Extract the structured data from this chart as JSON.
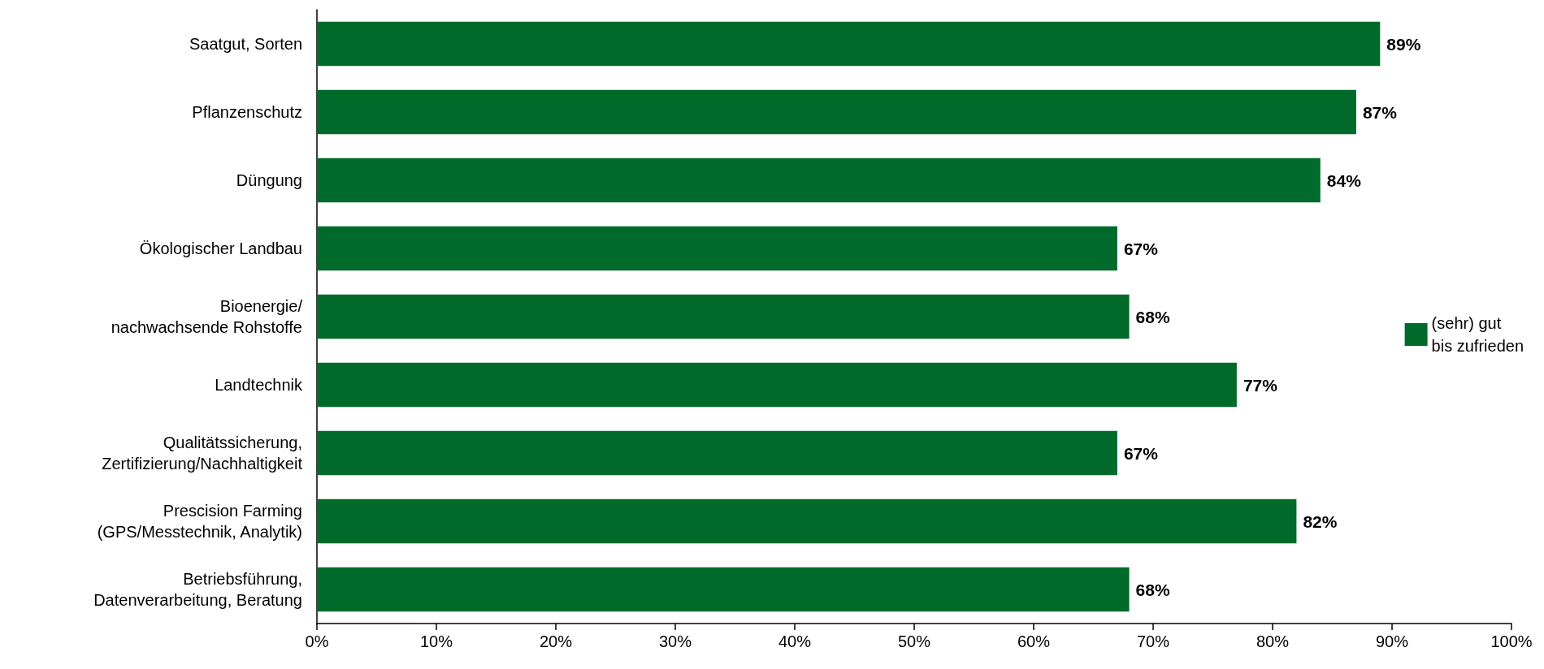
{
  "chart_data": {
    "type": "bar",
    "orientation": "horizontal",
    "categories": [
      "Saatgut, Sorten",
      "Pflanzenschutz",
      "Düngung",
      "Ökologischer Landbau",
      "Bioenergie/\nnachwachsende Rohstoffe",
      "Landtechnik",
      "Qualitätssicherung,\nZertifizierung/Nachhaltigkeit",
      "Prescision Farming\n(GPS/Messtechnik, Analytik)",
      "Betriebsführung,\nDatenverarbeitung, Beratung"
    ],
    "series": [
      {
        "name": "(sehr) gut\nbis zufrieden",
        "color": "#006a2a",
        "values": [
          89,
          87,
          84,
          67,
          68,
          77,
          67,
          82,
          68
        ],
        "value_labels": [
          "89%",
          "87%",
          "84%",
          "67%",
          "68%",
          "77%",
          "67%",
          "82%",
          "68%"
        ]
      }
    ],
    "xlim": [
      0,
      100
    ],
    "xticks": [
      {
        "value": 0,
        "label": "0%"
      },
      {
        "value": 10,
        "label": "10%"
      },
      {
        "value": 20,
        "label": "20%"
      },
      {
        "value": 30,
        "label": "30%"
      },
      {
        "value": 40,
        "label": "40%"
      },
      {
        "value": 50,
        "label": "50%"
      },
      {
        "value": 60,
        "label": "60%"
      },
      {
        "value": 70,
        "label": "70%"
      },
      {
        "value": 80,
        "label": "80%"
      },
      {
        "value": 90,
        "label": "90%"
      },
      {
        "value": 100,
        "label": "100%"
      }
    ],
    "grid": false,
    "legend": "right"
  }
}
